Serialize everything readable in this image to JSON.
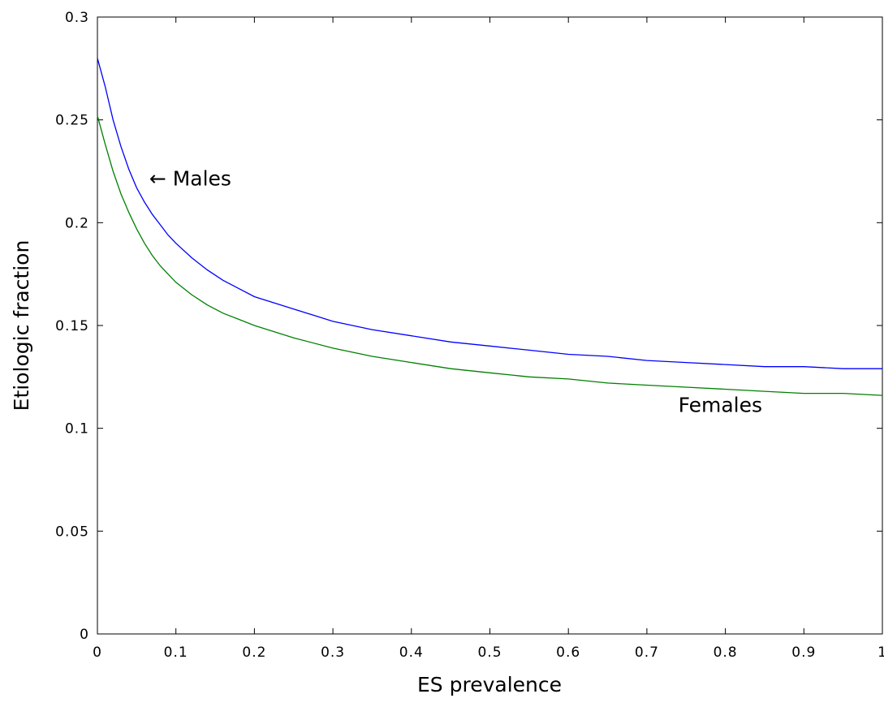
{
  "chart_data": {
    "type": "line",
    "title": "",
    "xlabel": "ES prevalence",
    "ylabel": "Etiologic fraction",
    "xlim": [
      0,
      1
    ],
    "ylim": [
      0,
      0.3
    ],
    "xticks": [
      "0",
      "0.1",
      "0.2",
      "0.3",
      "0.4",
      "0.5",
      "0.6",
      "0.7",
      "0.8",
      "0.9",
      "1"
    ],
    "yticks": [
      "0",
      "0.05",
      "0.1",
      "0.15",
      "0.2",
      "0.25",
      "0.3"
    ],
    "grid": false,
    "series": [
      {
        "name": "Males",
        "color": "#0000ff",
        "x": [
          0,
          0.01,
          0.02,
          0.03,
          0.04,
          0.05,
          0.06,
          0.07,
          0.08,
          0.09,
          0.1,
          0.12,
          0.14,
          0.16,
          0.18,
          0.2,
          0.25,
          0.3,
          0.35,
          0.4,
          0.45,
          0.5,
          0.55,
          0.6,
          0.65,
          0.7,
          0.75,
          0.8,
          0.85,
          0.9,
          0.95,
          1.0
        ],
        "values": [
          0.28,
          0.266,
          0.25,
          0.237,
          0.226,
          0.217,
          0.21,
          0.204,
          0.199,
          0.194,
          0.19,
          0.183,
          0.177,
          0.172,
          0.168,
          0.164,
          0.158,
          0.152,
          0.148,
          0.145,
          0.142,
          0.14,
          0.138,
          0.136,
          0.135,
          0.133,
          0.132,
          0.131,
          0.13,
          0.13,
          0.129,
          0.129
        ]
      },
      {
        "name": "Females",
        "color": "#008000",
        "x": [
          0,
          0.01,
          0.02,
          0.03,
          0.04,
          0.05,
          0.06,
          0.07,
          0.08,
          0.09,
          0.1,
          0.12,
          0.14,
          0.16,
          0.18,
          0.2,
          0.25,
          0.3,
          0.35,
          0.4,
          0.45,
          0.5,
          0.55,
          0.6,
          0.65,
          0.7,
          0.75,
          0.8,
          0.85,
          0.9,
          0.95,
          1.0
        ],
        "values": [
          0.252,
          0.238,
          0.225,
          0.214,
          0.205,
          0.197,
          0.19,
          0.184,
          0.179,
          0.175,
          0.171,
          0.165,
          0.16,
          0.156,
          0.153,
          0.15,
          0.144,
          0.139,
          0.135,
          0.132,
          0.129,
          0.127,
          0.125,
          0.124,
          0.122,
          0.121,
          0.12,
          0.119,
          0.118,
          0.117,
          0.117,
          0.116
        ]
      }
    ],
    "annotations": [
      {
        "text": "← Males",
        "x": 0.066,
        "y": 0.218
      },
      {
        "text": "Females",
        "x": 0.74,
        "y": 0.108
      }
    ]
  }
}
